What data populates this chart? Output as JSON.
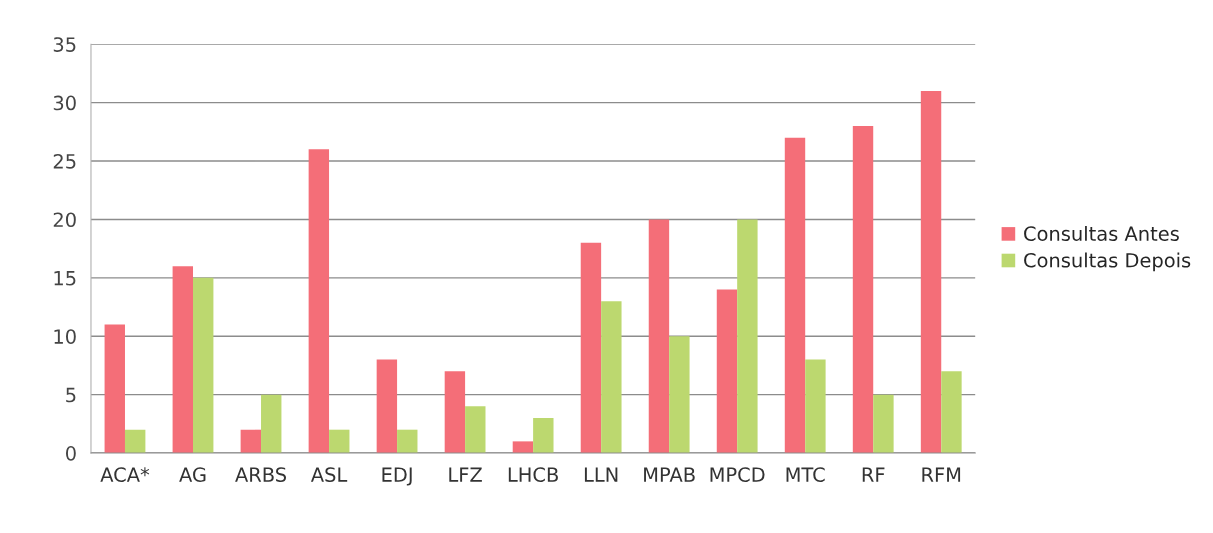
{
  "chart_data": {
    "type": "bar",
    "categories": [
      "ACA*",
      "AG",
      "ARBS",
      "ASL",
      "EDJ",
      "LFZ",
      "LHCB",
      "LLN",
      "MPAB",
      "MPCD",
      "MTC",
      "RF",
      "RFM"
    ],
    "series": [
      {
        "name": "Consultas Antes",
        "color": "#f46e78",
        "values": [
          11,
          16,
          2,
          26,
          8,
          7,
          1,
          18,
          20,
          14,
          27,
          28,
          31
        ]
      },
      {
        "name": "Consultas Depois",
        "color": "#bcd86f",
        "values": [
          2,
          15,
          5,
          2,
          2,
          4,
          3,
          13,
          10,
          20,
          8,
          5,
          7
        ]
      }
    ],
    "ylim": [
      0,
      35
    ],
    "yticks": [
      0,
      5,
      10,
      15,
      20,
      25,
      30,
      35
    ],
    "grid": "y",
    "legend": "right"
  }
}
